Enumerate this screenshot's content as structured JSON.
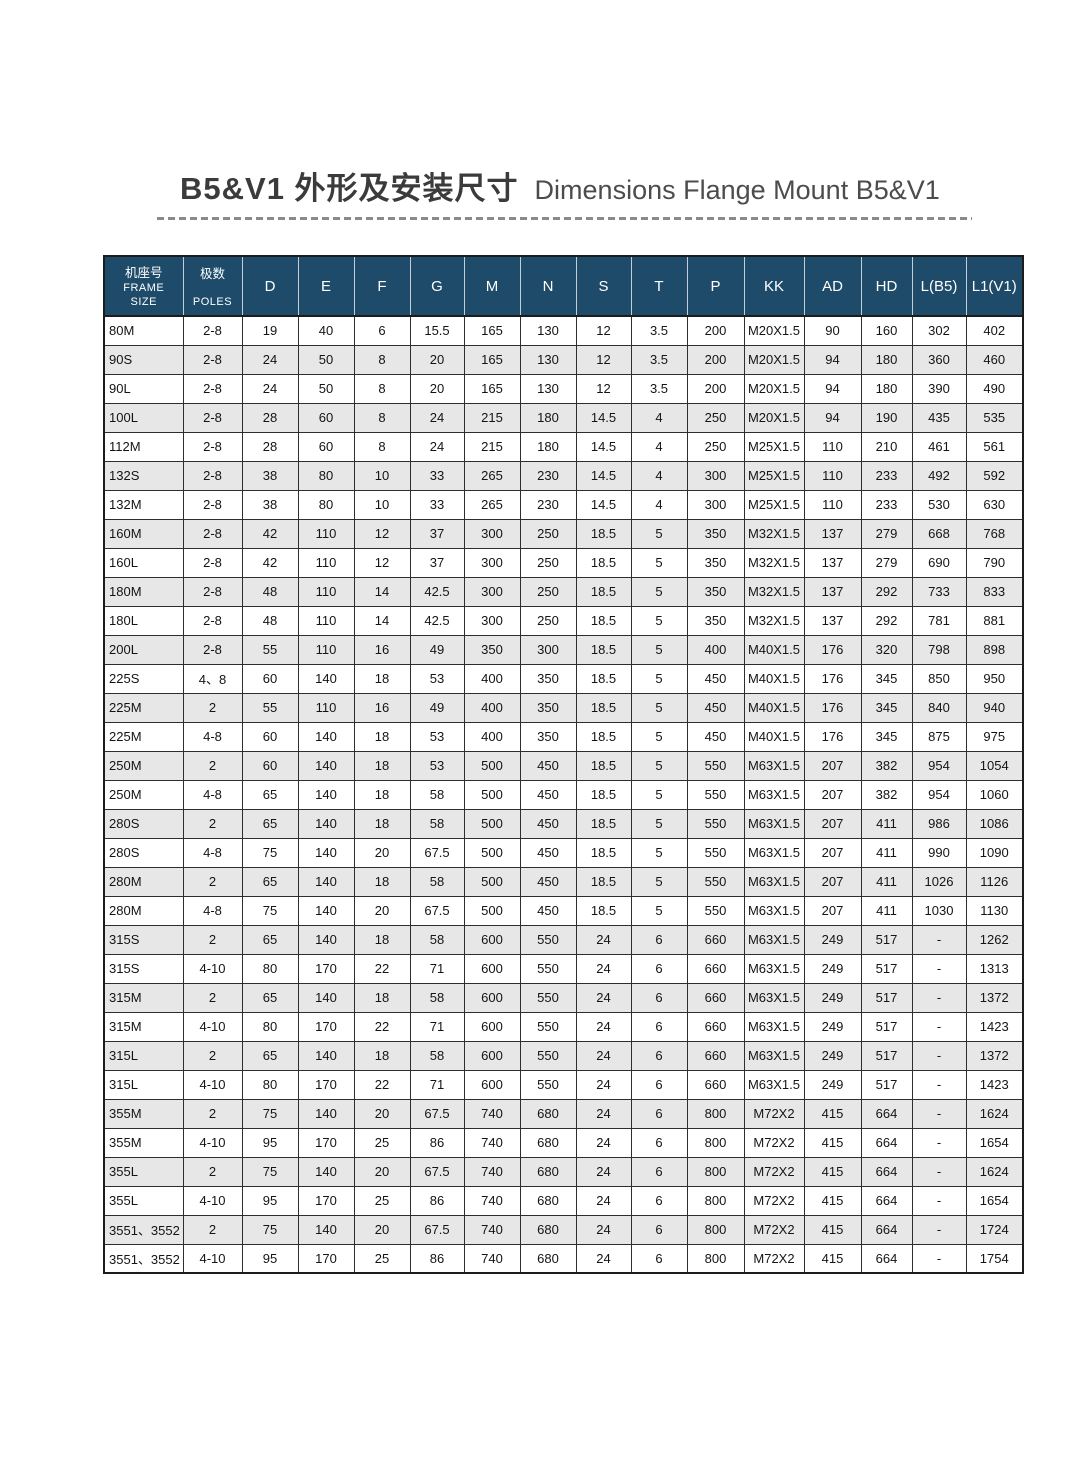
{
  "page": {
    "title_zh": "B5&V1 外形及安装尺寸",
    "title_en": "Dimensions Flange Mount B5&V1"
  },
  "table": {
    "header": {
      "frame_zh": "机座号",
      "frame_en_line1": "FRAME",
      "frame_en_line2": "SIZE",
      "poles_zh": "极数",
      "poles_en": "POLES",
      "dims": [
        "D",
        "E",
        "F",
        "G",
        "M",
        "N",
        "S",
        "T",
        "P",
        "KK",
        "AD",
        "HD",
        "L(B5)",
        "L1(V1)"
      ]
    },
    "rows": [
      [
        "80M",
        "2-8",
        "19",
        "40",
        "6",
        "15.5",
        "165",
        "130",
        "12",
        "3.5",
        "200",
        "M20X1.5",
        "90",
        "160",
        "302",
        "402"
      ],
      [
        "90S",
        "2-8",
        "24",
        "50",
        "8",
        "20",
        "165",
        "130",
        "12",
        "3.5",
        "200",
        "M20X1.5",
        "94",
        "180",
        "360",
        "460"
      ],
      [
        "90L",
        "2-8",
        "24",
        "50",
        "8",
        "20",
        "165",
        "130",
        "12",
        "3.5",
        "200",
        "M20X1.5",
        "94",
        "180",
        "390",
        "490"
      ],
      [
        "100L",
        "2-8",
        "28",
        "60",
        "8",
        "24",
        "215",
        "180",
        "14.5",
        "4",
        "250",
        "M20X1.5",
        "94",
        "190",
        "435",
        "535"
      ],
      [
        "112M",
        "2-8",
        "28",
        "60",
        "8",
        "24",
        "215",
        "180",
        "14.5",
        "4",
        "250",
        "M25X1.5",
        "110",
        "210",
        "461",
        "561"
      ],
      [
        "132S",
        "2-8",
        "38",
        "80",
        "10",
        "33",
        "265",
        "230",
        "14.5",
        "4",
        "300",
        "M25X1.5",
        "110",
        "233",
        "492",
        "592"
      ],
      [
        "132M",
        "2-8",
        "38",
        "80",
        "10",
        "33",
        "265",
        "230",
        "14.5",
        "4",
        "300",
        "M25X1.5",
        "110",
        "233",
        "530",
        "630"
      ],
      [
        "160M",
        "2-8",
        "42",
        "110",
        "12",
        "37",
        "300",
        "250",
        "18.5",
        "5",
        "350",
        "M32X1.5",
        "137",
        "279",
        "668",
        "768"
      ],
      [
        "160L",
        "2-8",
        "42",
        "110",
        "12",
        "37",
        "300",
        "250",
        "18.5",
        "5",
        "350",
        "M32X1.5",
        "137",
        "279",
        "690",
        "790"
      ],
      [
        "180M",
        "2-8",
        "48",
        "110",
        "14",
        "42.5",
        "300",
        "250",
        "18.5",
        "5",
        "350",
        "M32X1.5",
        "137",
        "292",
        "733",
        "833"
      ],
      [
        "180L",
        "2-8",
        "48",
        "110",
        "14",
        "42.5",
        "300",
        "250",
        "18.5",
        "5",
        "350",
        "M32X1.5",
        "137",
        "292",
        "781",
        "881"
      ],
      [
        "200L",
        "2-8",
        "55",
        "110",
        "16",
        "49",
        "350",
        "300",
        "18.5",
        "5",
        "400",
        "M40X1.5",
        "176",
        "320",
        "798",
        "898"
      ],
      [
        "225S",
        "4、8",
        "60",
        "140",
        "18",
        "53",
        "400",
        "350",
        "18.5",
        "5",
        "450",
        "M40X1.5",
        "176",
        "345",
        "850",
        "950"
      ],
      [
        "225M",
        "2",
        "55",
        "110",
        "16",
        "49",
        "400",
        "350",
        "18.5",
        "5",
        "450",
        "M40X1.5",
        "176",
        "345",
        "840",
        "940"
      ],
      [
        "225M",
        "4-8",
        "60",
        "140",
        "18",
        "53",
        "400",
        "350",
        "18.5",
        "5",
        "450",
        "M40X1.5",
        "176",
        "345",
        "875",
        "975"
      ],
      [
        "250M",
        "2",
        "60",
        "140",
        "18",
        "53",
        "500",
        "450",
        "18.5",
        "5",
        "550",
        "M63X1.5",
        "207",
        "382",
        "954",
        "1054"
      ],
      [
        "250M",
        "4-8",
        "65",
        "140",
        "18",
        "58",
        "500",
        "450",
        "18.5",
        "5",
        "550",
        "M63X1.5",
        "207",
        "382",
        "954",
        "1060"
      ],
      [
        "280S",
        "2",
        "65",
        "140",
        "18",
        "58",
        "500",
        "450",
        "18.5",
        "5",
        "550",
        "M63X1.5",
        "207",
        "411",
        "986",
        "1086"
      ],
      [
        "280S",
        "4-8",
        "75",
        "140",
        "20",
        "67.5",
        "500",
        "450",
        "18.5",
        "5",
        "550",
        "M63X1.5",
        "207",
        "411",
        "990",
        "1090"
      ],
      [
        "280M",
        "2",
        "65",
        "140",
        "18",
        "58",
        "500",
        "450",
        "18.5",
        "5",
        "550",
        "M63X1.5",
        "207",
        "411",
        "1026",
        "1126"
      ],
      [
        "280M",
        "4-8",
        "75",
        "140",
        "20",
        "67.5",
        "500",
        "450",
        "18.5",
        "5",
        "550",
        "M63X1.5",
        "207",
        "411",
        "1030",
        "1130"
      ],
      [
        "315S",
        "2",
        "65",
        "140",
        "18",
        "58",
        "600",
        "550",
        "24",
        "6",
        "660",
        "M63X1.5",
        "249",
        "517",
        "-",
        "1262"
      ],
      [
        "315S",
        "4-10",
        "80",
        "170",
        "22",
        "71",
        "600",
        "550",
        "24",
        "6",
        "660",
        "M63X1.5",
        "249",
        "517",
        "-",
        "1313"
      ],
      [
        "315M",
        "2",
        "65",
        "140",
        "18",
        "58",
        "600",
        "550",
        "24",
        "6",
        "660",
        "M63X1.5",
        "249",
        "517",
        "-",
        "1372"
      ],
      [
        "315M",
        "4-10",
        "80",
        "170",
        "22",
        "71",
        "600",
        "550",
        "24",
        "6",
        "660",
        "M63X1.5",
        "249",
        "517",
        "-",
        "1423"
      ],
      [
        "315L",
        "2",
        "65",
        "140",
        "18",
        "58",
        "600",
        "550",
        "24",
        "6",
        "660",
        "M63X1.5",
        "249",
        "517",
        "-",
        "1372"
      ],
      [
        "315L",
        "4-10",
        "80",
        "170",
        "22",
        "71",
        "600",
        "550",
        "24",
        "6",
        "660",
        "M63X1.5",
        "249",
        "517",
        "-",
        "1423"
      ],
      [
        "355M",
        "2",
        "75",
        "140",
        "20",
        "67.5",
        "740",
        "680",
        "24",
        "6",
        "800",
        "M72X2",
        "415",
        "664",
        "-",
        "1624"
      ],
      [
        "355M",
        "4-10",
        "95",
        "170",
        "25",
        "86",
        "740",
        "680",
        "24",
        "6",
        "800",
        "M72X2",
        "415",
        "664",
        "-",
        "1654"
      ],
      [
        "355L",
        "2",
        "75",
        "140",
        "20",
        "67.5",
        "740",
        "680",
        "24",
        "6",
        "800",
        "M72X2",
        "415",
        "664",
        "-",
        "1624"
      ],
      [
        "355L",
        "4-10",
        "95",
        "170",
        "25",
        "86",
        "740",
        "680",
        "24",
        "6",
        "800",
        "M72X2",
        "415",
        "664",
        "-",
        "1654"
      ],
      [
        "3551、3552",
        "2",
        "75",
        "140",
        "20",
        "67.5",
        "740",
        "680",
        "24",
        "6",
        "800",
        "M72X2",
        "415",
        "664",
        "-",
        "1724"
      ],
      [
        "3551、3552",
        "4-10",
        "95",
        "170",
        "25",
        "86",
        "740",
        "680",
        "24",
        "6",
        "800",
        "M72X2",
        "415",
        "664",
        "-",
        "1754"
      ]
    ]
  },
  "colors": {
    "header_bg": "#1e4b69",
    "row_stripe": "#e7e7e7",
    "grid_border": "#2e2e2e",
    "dash": "#8a8a8a"
  }
}
